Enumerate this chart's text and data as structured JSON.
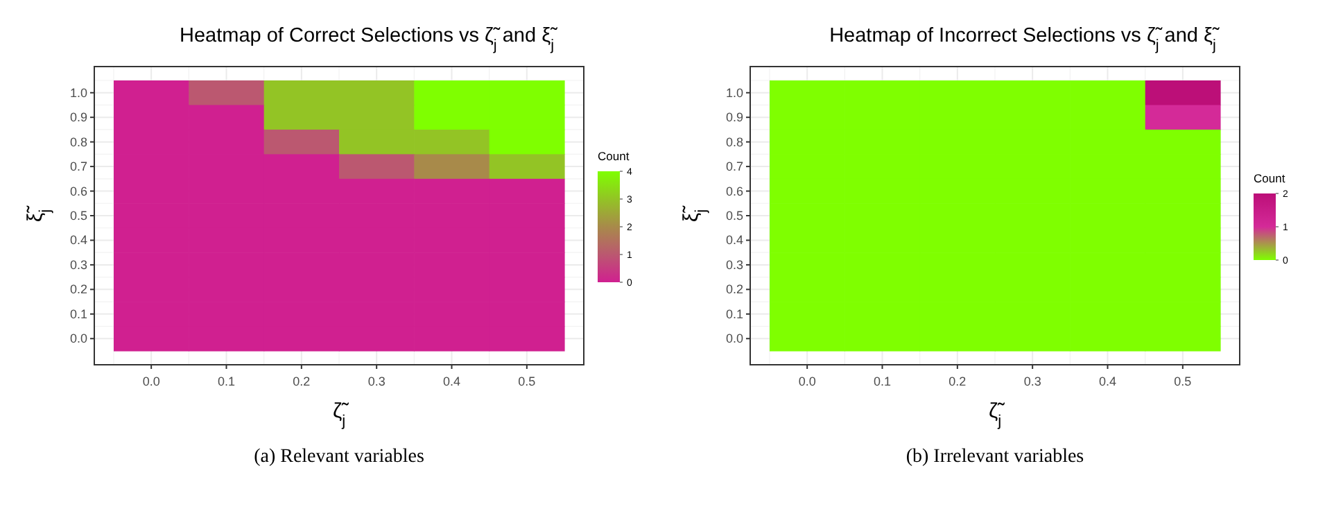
{
  "chart_data": [
    {
      "type": "heatmap",
      "title": "Heatmap of Correct Selections vs ζ̃$_{j}$ and ξ̃$_{j}$",
      "xlabel": "ζ̃$_{j}$",
      "ylabel": "ξ̃$_{j}$",
      "clabel": "Count",
      "grid": true,
      "categories": [
        "0.0",
        "0.1",
        "0.2",
        "0.3",
        "0.4",
        "0.5"
      ],
      "y_categories": [
        "1.0",
        "0.9",
        "0.8",
        "0.7",
        "0.6",
        "0.5",
        "0.4",
        "0.3",
        "0.2",
        "0.1",
        "0.0"
      ],
      "cells": [
        [
          0,
          1,
          3,
          3,
          4,
          4
        ],
        [
          0,
          0,
          3,
          3,
          4,
          4
        ],
        [
          0,
          0,
          1,
          3,
          3,
          4
        ],
        [
          0,
          0,
          0,
          1,
          2,
          3
        ],
        [
          0,
          0,
          0,
          0,
          0,
          0
        ],
        [
          0,
          0,
          0,
          0,
          0,
          0
        ],
        [
          0,
          0,
          0,
          0,
          0,
          0
        ],
        [
          0,
          0,
          0,
          0,
          0,
          0
        ],
        [
          0,
          0,
          0,
          0,
          0,
          0
        ],
        [
          0,
          0,
          0,
          0,
          0,
          0
        ],
        [
          0,
          0,
          0,
          0,
          0,
          0
        ]
      ],
      "clim": [
        0,
        4
      ],
      "cticks": [
        0,
        1,
        2,
        3,
        4
      ],
      "colors": [
        "#d02090",
        "#bb5870",
        "#a88a4a",
        "#93c425",
        "#7fff00"
      ],
      "annotations": [
        "(a) Relevant variables"
      ]
    },
    {
      "type": "heatmap",
      "title": "Heatmap of Incorrect Selections vs ζ̃$_{j}$ and ξ̃$_{j}$",
      "xlabel": "ζ̃$_{j}$",
      "ylabel": "ξ̃$_{j}$",
      "clabel": "Count",
      "grid": true,
      "categories": [
        "0.0",
        "0.1",
        "0.2",
        "0.3",
        "0.4",
        "0.5"
      ],
      "y_categories": [
        "1.0",
        "0.9",
        "0.8",
        "0.7",
        "0.6",
        "0.5",
        "0.4",
        "0.3",
        "0.2",
        "0.1",
        "0.0"
      ],
      "cells": [
        [
          0,
          0,
          0,
          0,
          0,
          2
        ],
        [
          0,
          0,
          0,
          0,
          0,
          1
        ],
        [
          0,
          0,
          0,
          0,
          0,
          0
        ],
        [
          0,
          0,
          0,
          0,
          0,
          0
        ],
        [
          0,
          0,
          0,
          0,
          0,
          0
        ],
        [
          0,
          0,
          0,
          0,
          0,
          0
        ],
        [
          0,
          0,
          0,
          0,
          0,
          0
        ],
        [
          0,
          0,
          0,
          0,
          0,
          0
        ],
        [
          0,
          0,
          0,
          0,
          0,
          0
        ],
        [
          0,
          0,
          0,
          0,
          0,
          0
        ],
        [
          0,
          0,
          0,
          0,
          0,
          0
        ]
      ],
      "clim": [
        0,
        2
      ],
      "cticks": [
        0,
        1,
        2
      ],
      "colors": [
        "#7fff00",
        "#d42a98",
        "#bc0f78"
      ],
      "annotations": [
        "(b) Irrelevant variables"
      ]
    }
  ]
}
